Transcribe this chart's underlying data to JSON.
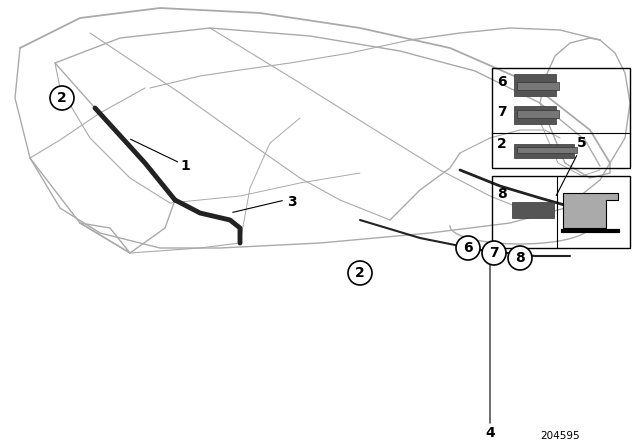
{
  "bg_color": "#ffffff",
  "line_color": "#000000",
  "car_line_color": "#aaaaaa",
  "seal_color": "#222222",
  "dark_part": "#555555",
  "diagram_number": "204595",
  "fig_w": 6.4,
  "fig_h": 4.48,
  "dpi": 100
}
